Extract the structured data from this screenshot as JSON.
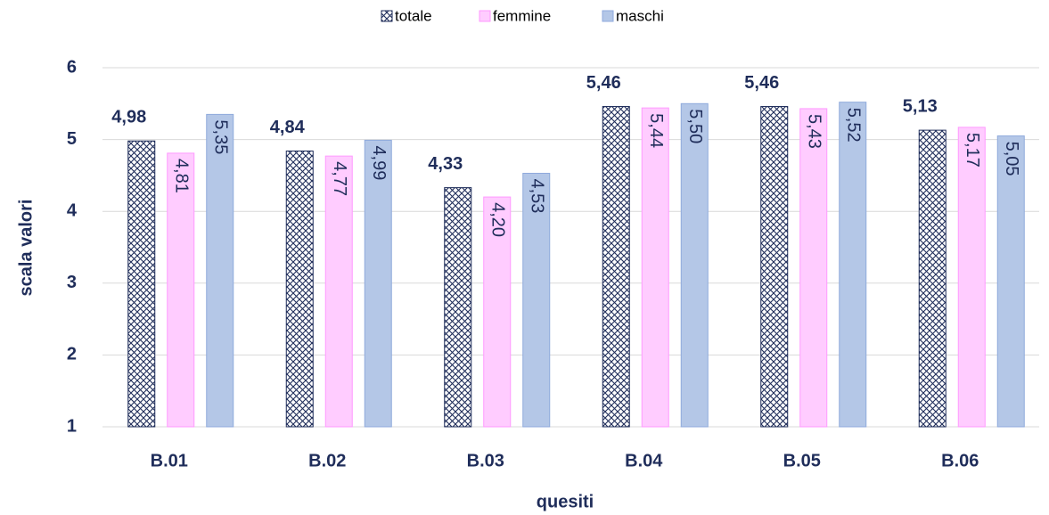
{
  "chart_data": {
    "type": "bar",
    "x_label": "quesiti",
    "y_label": "scala valori",
    "categories": [
      "B.01",
      "B.02",
      "B.03",
      "B.04",
      "B.05",
      "B.06"
    ],
    "series": [
      {
        "name": "totale",
        "color": "#1f2d5a",
        "pattern": "crosshatch",
        "values": [
          4.98,
          4.84,
          4.33,
          5.46,
          5.46,
          5.13
        ],
        "value_labels": [
          "4,98",
          "4,84",
          "4,33",
          "5,46",
          "5,46",
          "5,13"
        ]
      },
      {
        "name": "femmine",
        "color": "#ffccff",
        "values": [
          4.81,
          4.77,
          4.2,
          5.44,
          5.43,
          5.17
        ],
        "value_labels": [
          "4,81",
          "4,77",
          "4,20",
          "5,44",
          "5,43",
          "5,17"
        ]
      },
      {
        "name": "maschi",
        "color": "#b4c7e7",
        "values": [
          5.35,
          4.99,
          4.53,
          5.5,
          5.52,
          5.05
        ],
        "value_labels": [
          "5,35",
          "4,99",
          "4,53",
          "5,50",
          "5,52",
          "5,05"
        ]
      }
    ],
    "ylim": [
      1,
      6
    ],
    "yticks": [
      1,
      2,
      3,
      4,
      5,
      6
    ],
    "grid": true,
    "legend": "top"
  }
}
